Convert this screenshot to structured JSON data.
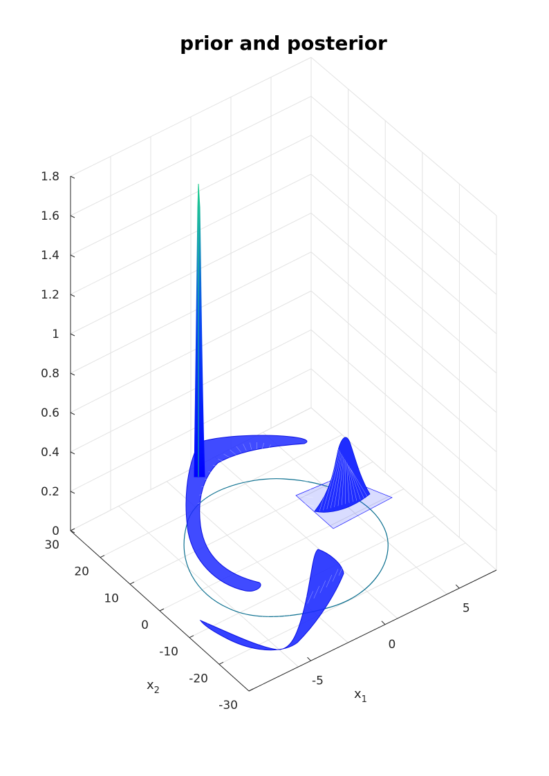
{
  "chart_data": {
    "type": "surface3d",
    "title": "prior and posterior",
    "xlabel": "x",
    "xlabel_sub": "1",
    "ylabel": "x",
    "ylabel_sub": "2",
    "zlabel": "",
    "x_ticks": [
      "-5",
      "0",
      "5"
    ],
    "y_ticks": [
      "30",
      "20",
      "10",
      "0",
      "-10",
      "-20",
      "-30"
    ],
    "z_ticks": [
      "0",
      "0.2",
      "0.4",
      "0.6",
      "0.8",
      "1",
      "1.2",
      "1.4",
      "1.6",
      "1.8"
    ],
    "z_values": [
      0,
      0.2,
      0.4,
      0.6,
      0.8,
      1,
      1.2,
      1.4,
      1.6,
      1.8
    ],
    "zlim": [
      0,
      1.8
    ],
    "grid": true,
    "colors": {
      "low": "#0000ff",
      "high": "#1fd08a",
      "trajectory": "#0b6f8f"
    }
  }
}
